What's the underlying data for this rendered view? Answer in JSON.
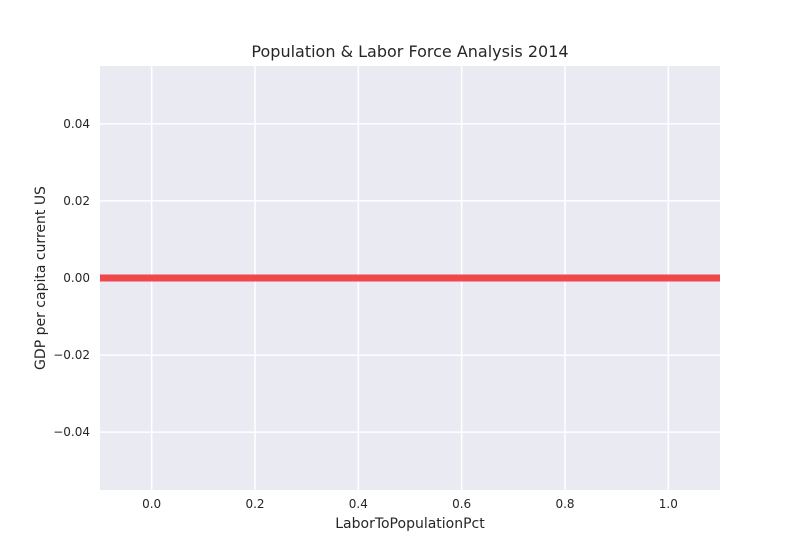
{
  "chart_data": {
    "type": "line",
    "title": "Population & Labor Force Analysis 2014",
    "xlabel": "LaborToPopulationPct",
    "ylabel": "GDP per capita current US",
    "xlim": [
      -0.1,
      1.1
    ],
    "ylim": [
      -0.055,
      0.055
    ],
    "xticks": [
      0.0,
      0.2,
      0.4,
      0.6,
      0.8,
      1.0
    ],
    "xtick_labels": [
      "0.0",
      "0.2",
      "0.4",
      "0.6",
      "0.8",
      "1.0"
    ],
    "yticks": [
      -0.04,
      -0.02,
      0.0,
      0.02,
      0.04
    ],
    "ytick_labels": [
      "−0.04",
      "−0.02",
      "0.00",
      "0.02",
      "0.04"
    ],
    "grid": true,
    "background_color": "#eaeaf2",
    "series": [
      {
        "color": "#f0474a",
        "x": [
          -0.1,
          1.1
        ],
        "y": [
          0.0,
          0.0
        ]
      }
    ]
  }
}
